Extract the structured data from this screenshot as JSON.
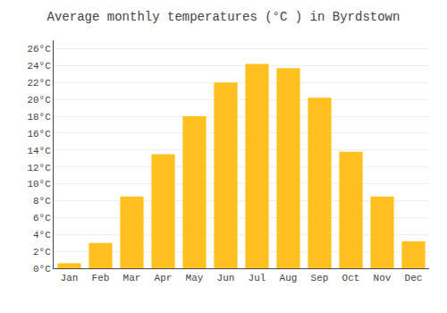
{
  "chart_data": {
    "type": "bar",
    "title": "Average monthly temperatures (°C ) in Byrdstown",
    "categories": [
      "Jan",
      "Feb",
      "Mar",
      "Apr",
      "May",
      "Jun",
      "Jul",
      "Aug",
      "Sep",
      "Oct",
      "Nov",
      "Dec"
    ],
    "values": [
      0.6,
      3.0,
      8.5,
      13.5,
      18.0,
      22.0,
      24.2,
      23.7,
      20.2,
      13.8,
      8.5,
      3.2
    ],
    "color": "#FFC020",
    "ylim": [
      0,
      27
    ],
    "yticks": [
      {
        "value": 0,
        "label": "0°C"
      },
      {
        "value": 2,
        "label": "2°C"
      },
      {
        "value": 4,
        "label": "4°C"
      },
      {
        "value": 6,
        "label": "6°C"
      },
      {
        "value": 8,
        "label": "8°C"
      },
      {
        "value": 10,
        "label": "10°C"
      },
      {
        "value": 12,
        "label": "12°C"
      },
      {
        "value": 14,
        "label": "14°C"
      },
      {
        "value": 16,
        "label": "16°C"
      },
      {
        "value": 18,
        "label": "18°C"
      },
      {
        "value": 20,
        "label": "20°C"
      },
      {
        "value": 22,
        "label": "22°C"
      },
      {
        "value": 24,
        "label": "24°C"
      },
      {
        "value": 26,
        "label": "26°C"
      }
    ],
    "grid": true
  }
}
